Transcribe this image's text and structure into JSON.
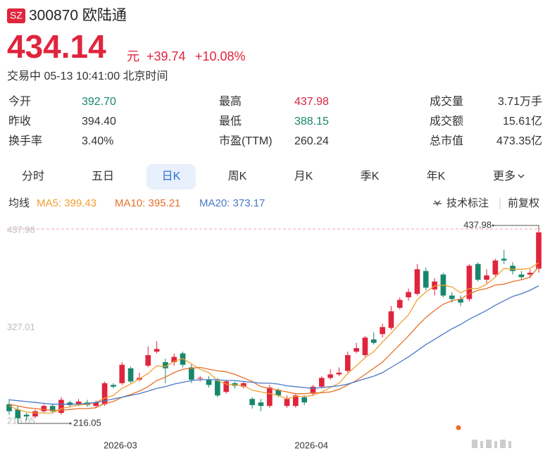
{
  "header": {
    "market": "SZ",
    "name": "300870 欧陆通",
    "price": "434.14",
    "unit": "元",
    "change": "+39.74",
    "change_pct": "+10.08%",
    "status": "交易中 05-13 10:41:00 北京时间"
  },
  "stats": [
    {
      "label": "今开",
      "value": "392.70",
      "color": "#17876b"
    },
    {
      "label": "最高",
      "value": "437.98",
      "color": "#d9233d"
    },
    {
      "label": "成交量",
      "value": "3.71万手",
      "color": "#333333"
    },
    {
      "label": "昨收",
      "value": "394.40",
      "color": "#333333"
    },
    {
      "label": "最低",
      "value": "388.15",
      "color": "#17876b"
    },
    {
      "label": "成交额",
      "value": "15.61亿",
      "color": "#333333"
    },
    {
      "label": "换手率",
      "value": "3.40%",
      "color": "#333333"
    },
    {
      "label": "市盈(TTM)",
      "value": "260.24",
      "color": "#333333"
    },
    {
      "label": "总市值",
      "value": "473.35亿",
      "color": "#333333"
    }
  ],
  "tabs": [
    "分时",
    "五日",
    "日K",
    "周K",
    "月K",
    "季K",
    "年K",
    "更多"
  ],
  "active_tab": 2,
  "indicator": {
    "label": "均线",
    "tools": [
      "技术标注",
      "前复权"
    ]
  },
  "chart_data": {
    "type": "candlestick",
    "categories": [
      null,
      null,
      null,
      null,
      null,
      null,
      null,
      null,
      null,
      null,
      null,
      null,
      "2026-03",
      null,
      null,
      null,
      null,
      null,
      null,
      null,
      null,
      null,
      null,
      null,
      null,
      null,
      null,
      null,
      null,
      null,
      null,
      null,
      null,
      null,
      "2026-04",
      null,
      null,
      null,
      null,
      null,
      null,
      null,
      null,
      null,
      null,
      null,
      null,
      null,
      null,
      null,
      null,
      null,
      null,
      null,
      null,
      null,
      null,
      null,
      null,
      null,
      null,
      null
    ],
    "open": [
      238,
      232,
      226,
      224,
      230,
      236,
      228,
      240,
      238,
      240,
      236,
      238,
      260,
      262,
      279,
      266,
      282,
      298,
      286,
      286,
      296,
      280,
      268,
      266,
      265,
      252,
      262,
      258,
      244,
      240,
      236,
      254,
      236,
      236,
      246,
      250,
      258,
      268,
      272,
      276,
      298,
      294,
      312,
      318,
      325,
      348,
      360,
      364,
      390,
      369,
      386,
      362,
      358,
      358,
      398,
      380,
      386,
      404,
      396,
      386,
      386,
      392.7
    ],
    "high": [
      244,
      236,
      228,
      232,
      238,
      238,
      246,
      242,
      244,
      243,
      242,
      264,
      262,
      286,
      281,
      274,
      304,
      310,
      290,
      296,
      298,
      284,
      270,
      270,
      268,
      266,
      264,
      264,
      246,
      244,
      260,
      256,
      248,
      250,
      248,
      260,
      270,
      278,
      280,
      298,
      308,
      316,
      320,
      330,
      350,
      360,
      370,
      398,
      394,
      382,
      388,
      366,
      362,
      398,
      400,
      392,
      404,
      414,
      400,
      390,
      392,
      437.98
    ],
    "low": [
      226,
      216.05,
      219,
      222,
      228,
      228,
      226,
      234,
      236,
      235,
      234,
      236,
      256,
      260,
      262,
      264,
      280,
      296,
      262,
      282,
      280,
      262,
      264,
      257,
      246,
      250,
      256,
      256,
      233,
      230,
      234,
      246,
      234,
      234,
      237,
      248,
      256,
      266,
      270,
      274,
      296,
      292,
      306,
      314,
      323,
      346,
      356,
      362,
      368,
      362,
      360,
      354,
      350,
      355,
      378,
      376,
      384,
      398,
      386,
      380,
      382,
      388.15
    ],
    "close": [
      230,
      222,
      224,
      230,
      236,
      230,
      243,
      237,
      241,
      237,
      240,
      262,
      258,
      283,
      264,
      268,
      294,
      301,
      279,
      292,
      283,
      266,
      268,
      260,
      248,
      264,
      259,
      262,
      237,
      236,
      257,
      248,
      244,
      248,
      240,
      258,
      268,
      272,
      274,
      294,
      302,
      314,
      308,
      326,
      344,
      357,
      366,
      392,
      371,
      378,
      362,
      358,
      354,
      396,
      380,
      385,
      402,
      402,
      390,
      383,
      388,
      434.14
    ],
    "up_color": "#e0243c",
    "down_color": "#17876b",
    "series": [
      {
        "name": "MA5: 399.43",
        "color": "#f0a030",
        "values": [
          236,
          232,
          229,
          228,
          228,
          228,
          233,
          235,
          237,
          238,
          240,
          245,
          248,
          256,
          261,
          267,
          273,
          282,
          281,
          287,
          290,
          284,
          278,
          274,
          265,
          261,
          260,
          259,
          254,
          252,
          250,
          248,
          244,
          247,
          247,
          248,
          252,
          257,
          262,
          273,
          282,
          291,
          298,
          309,
          319,
          330,
          340,
          357,
          366,
          373,
          374,
          372,
          365,
          370,
          370,
          375,
          383,
          393,
          392,
          392,
          393,
          399.43
        ]
      },
      {
        "name": "MA10: 395.21",
        "color": "#e8702a",
        "values": [
          238,
          236,
          234,
          233,
          232,
          231,
          231,
          232,
          233,
          233,
          234,
          239,
          241,
          246,
          249,
          253,
          258,
          265,
          269,
          274,
          278,
          279,
          280,
          278,
          276,
          275,
          272,
          268,
          264,
          258,
          256,
          254,
          252,
          250,
          250,
          251,
          251,
          252,
          255,
          260,
          265,
          272,
          279,
          286,
          296,
          306,
          316,
          327,
          337,
          345,
          352,
          356,
          358,
          364,
          368,
          370,
          374,
          375,
          378,
          380,
          383,
          395.21
        ]
      },
      {
        "name": "MA20: 373.17",
        "color": "#4a78c8",
        "values": [
          243,
          242,
          241,
          240,
          239,
          238,
          238,
          238,
          238,
          239,
          240,
          242,
          244,
          246,
          248,
          250,
          253,
          256,
          258,
          261,
          263,
          265,
          266,
          266,
          266,
          265,
          265,
          264,
          263,
          262,
          262,
          261,
          259,
          258,
          257,
          256,
          257,
          258,
          259,
          261,
          264,
          267,
          270,
          274,
          280,
          286,
          292,
          299,
          306,
          312,
          318,
          324,
          329,
          335,
          340,
          345,
          351,
          356,
          361,
          364,
          368,
          373.17
        ]
      }
    ],
    "ylim": [
      204.8,
      443.6
    ],
    "yticks": [
      216.05,
      327.01,
      437.98
    ],
    "max_label": 437.98,
    "min_label": 216.05
  }
}
